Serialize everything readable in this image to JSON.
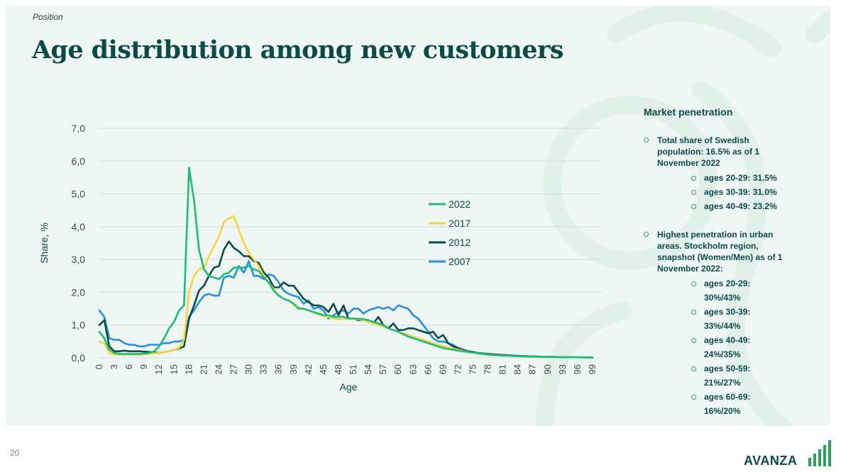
{
  "page": {
    "section": "Position",
    "title": "Age distribution among new customers",
    "page_number": "20"
  },
  "sidebar": {
    "heading": "Market penetration",
    "bullets": [
      {
        "text": "Total share of Swedish population: 16.5% as of 1 November 2022",
        "items": [
          "ages 20-29: 31.5%",
          "ages 30-39: 31.0%",
          "ages 40-49: 23.2%"
        ]
      },
      {
        "text": "Highest penetration in urban areas. Stockholm region, snapshot (Women/Men) as of 1 November 2022:",
        "items": [
          "ages 20-29: 30%/43%",
          "ages 30-39: 33%/44%",
          "ages 40-49: 24%/35%",
          "ages 50-59: 21%/27%",
          "ages 60-69: 16%/20%"
        ]
      }
    ]
  },
  "logo": {
    "text": "AVANZA"
  },
  "colors": {
    "title": "#0c4a48",
    "panel": "#eff7f4",
    "accent": "#2ca15c",
    "s2022": "#1dbb7a",
    "s2017": "#f6d43e",
    "s2012": "#0d4b45",
    "s2007": "#2a8ee0"
  },
  "chart_data": {
    "type": "line",
    "title": "",
    "xlabel": "Age",
    "ylabel": "Share, %",
    "ylim": [
      0,
      7
    ],
    "yticks": [
      "0,0",
      "1,0",
      "2,0",
      "3,0",
      "4,0",
      "5,0",
      "6,0",
      "7,0"
    ],
    "xticks": [
      0,
      3,
      6,
      9,
      12,
      15,
      18,
      21,
      24,
      27,
      30,
      33,
      36,
      39,
      42,
      45,
      48,
      51,
      54,
      57,
      60,
      63,
      66,
      69,
      72,
      75,
      78,
      81,
      84,
      87,
      90,
      93,
      96,
      99
    ],
    "grid": "horizontal",
    "legend_position": "center-right",
    "series": [
      {
        "name": "2022",
        "color_key": "s2022",
        "anchors": [
          [
            0,
            0.8
          ],
          [
            1,
            0.6
          ],
          [
            2,
            0.25
          ],
          [
            3,
            0.15
          ],
          [
            4,
            0.12
          ],
          [
            5,
            0.12
          ],
          [
            6,
            0.12
          ],
          [
            7,
            0.12
          ],
          [
            8,
            0.12
          ],
          [
            9,
            0.13
          ],
          [
            10,
            0.15
          ],
          [
            11,
            0.2
          ],
          [
            12,
            0.35
          ],
          [
            13,
            0.6
          ],
          [
            14,
            0.9
          ],
          [
            15,
            1.1
          ],
          [
            16,
            1.45
          ],
          [
            17,
            1.6
          ],
          [
            18,
            5.8
          ],
          [
            19,
            4.8
          ],
          [
            20,
            3.3
          ],
          [
            21,
            2.7
          ],
          [
            22,
            2.5
          ],
          [
            23,
            2.45
          ],
          [
            24,
            2.4
          ],
          [
            25,
            2.55
          ],
          [
            26,
            2.6
          ],
          [
            27,
            2.75
          ],
          [
            28,
            2.75
          ],
          [
            29,
            2.75
          ],
          [
            30,
            2.8
          ],
          [
            31,
            2.7
          ],
          [
            32,
            2.65
          ],
          [
            33,
            2.45
          ],
          [
            34,
            2.3
          ],
          [
            35,
            2.05
          ],
          [
            36,
            1.9
          ],
          [
            37,
            1.8
          ],
          [
            38,
            1.75
          ],
          [
            39,
            1.65
          ],
          [
            40,
            1.5
          ],
          [
            41,
            1.5
          ],
          [
            42,
            1.45
          ],
          [
            43,
            1.4
          ],
          [
            44,
            1.35
          ],
          [
            45,
            1.3
          ],
          [
            46,
            1.3
          ],
          [
            47,
            1.25
          ],
          [
            48,
            1.25
          ],
          [
            49,
            1.25
          ],
          [
            50,
            1.2
          ],
          [
            51,
            1.2
          ],
          [
            52,
            1.2
          ],
          [
            53,
            1.18
          ],
          [
            54,
            1.15
          ],
          [
            55,
            1.1
          ],
          [
            56,
            1.05
          ],
          [
            57,
            1.0
          ],
          [
            58,
            0.9
          ],
          [
            59,
            0.85
          ],
          [
            60,
            0.8
          ],
          [
            61,
            0.72
          ],
          [
            62,
            0.65
          ],
          [
            63,
            0.6
          ],
          [
            64,
            0.55
          ],
          [
            65,
            0.5
          ],
          [
            66,
            0.45
          ],
          [
            67,
            0.4
          ],
          [
            68,
            0.35
          ],
          [
            69,
            0.3
          ],
          [
            70,
            0.27
          ],
          [
            71,
            0.25
          ],
          [
            72,
            0.22
          ],
          [
            73,
            0.2
          ],
          [
            74,
            0.18
          ],
          [
            75,
            0.16
          ],
          [
            76,
            0.14
          ],
          [
            78,
            0.1
          ],
          [
            80,
            0.08
          ],
          [
            84,
            0.05
          ],
          [
            90,
            0.03
          ],
          [
            99,
            0.01
          ]
        ]
      },
      {
        "name": "2017",
        "color_key": "s2017",
        "anchors": [
          [
            0,
            0.5
          ],
          [
            1,
            0.45
          ],
          [
            2,
            0.15
          ],
          [
            3,
            0.1
          ],
          [
            5,
            0.1
          ],
          [
            8,
            0.1
          ],
          [
            10,
            0.12
          ],
          [
            12,
            0.15
          ],
          [
            14,
            0.2
          ],
          [
            15,
            0.25
          ],
          [
            16,
            0.3
          ],
          [
            17,
            0.55
          ],
          [
            18,
            2.0
          ],
          [
            19,
            2.5
          ],
          [
            20,
            2.7
          ],
          [
            21,
            2.75
          ],
          [
            22,
            3.1
          ],
          [
            23,
            3.4
          ],
          [
            24,
            3.7
          ],
          [
            25,
            4.15
          ],
          [
            26,
            4.25
          ],
          [
            27,
            4.32
          ],
          [
            28,
            3.9
          ],
          [
            29,
            3.5
          ],
          [
            30,
            3.2
          ],
          [
            31,
            3.0
          ],
          [
            32,
            2.8
          ],
          [
            33,
            2.5
          ],
          [
            34,
            2.3
          ],
          [
            35,
            2.1
          ],
          [
            36,
            1.9
          ],
          [
            37,
            1.8
          ],
          [
            38,
            1.75
          ],
          [
            39,
            1.6
          ],
          [
            40,
            1.55
          ],
          [
            41,
            1.5
          ],
          [
            42,
            1.45
          ],
          [
            43,
            1.38
          ],
          [
            44,
            1.32
          ],
          [
            45,
            1.28
          ],
          [
            46,
            1.25
          ],
          [
            47,
            1.2
          ],
          [
            48,
            1.18
          ],
          [
            50,
            1.2
          ],
          [
            52,
            1.18
          ],
          [
            54,
            1.1
          ],
          [
            56,
            1.0
          ],
          [
            58,
            0.9
          ],
          [
            60,
            0.8
          ],
          [
            62,
            0.7
          ],
          [
            64,
            0.6
          ],
          [
            66,
            0.5
          ],
          [
            68,
            0.4
          ],
          [
            70,
            0.32
          ],
          [
            72,
            0.25
          ],
          [
            74,
            0.18
          ],
          [
            76,
            0.14
          ],
          [
            78,
            0.1
          ],
          [
            80,
            0.08
          ],
          [
            84,
            0.05
          ],
          [
            90,
            0.03
          ],
          [
            99,
            0.01
          ]
        ]
      },
      {
        "name": "2012",
        "color_key": "s2012",
        "anchors": [
          [
            0,
            1.0
          ],
          [
            1,
            1.15
          ],
          [
            2,
            0.35
          ],
          [
            3,
            0.2
          ],
          [
            4,
            0.2
          ],
          [
            5,
            0.22
          ],
          [
            6,
            0.2
          ],
          [
            8,
            0.2
          ],
          [
            10,
            0.18
          ],
          [
            12,
            0.15
          ],
          [
            14,
            0.2
          ],
          [
            15,
            0.25
          ],
          [
            16,
            0.28
          ],
          [
            17,
            0.35
          ],
          [
            18,
            1.2
          ],
          [
            19,
            1.6
          ],
          [
            20,
            2.05
          ],
          [
            21,
            2.2
          ],
          [
            22,
            2.5
          ],
          [
            23,
            2.75
          ],
          [
            24,
            2.8
          ],
          [
            25,
            3.3
          ],
          [
            26,
            3.55
          ],
          [
            27,
            3.35
          ],
          [
            28,
            3.25
          ],
          [
            29,
            3.1
          ],
          [
            30,
            3.1
          ],
          [
            31,
            2.95
          ],
          [
            32,
            2.9
          ],
          [
            33,
            2.6
          ],
          [
            34,
            2.45
          ],
          [
            35,
            2.15
          ],
          [
            36,
            2.15
          ],
          [
            37,
            2.3
          ],
          [
            38,
            2.2
          ],
          [
            39,
            2.2
          ],
          [
            40,
            2.0
          ],
          [
            41,
            1.8
          ],
          [
            42,
            1.7
          ],
          [
            43,
            1.6
          ],
          [
            44,
            1.6
          ],
          [
            45,
            1.55
          ],
          [
            46,
            1.4
          ],
          [
            47,
            1.65
          ],
          [
            48,
            1.3
          ],
          [
            49,
            1.6
          ],
          [
            50,
            1.2
          ],
          [
            51,
            1.2
          ],
          [
            52,
            1.15
          ],
          [
            53,
            1.15
          ],
          [
            54,
            1.1
          ],
          [
            55,
            1.05
          ],
          [
            56,
            1.25
          ],
          [
            57,
            1.0
          ],
          [
            58,
            0.9
          ],
          [
            59,
            1.05
          ],
          [
            60,
            0.85
          ],
          [
            61,
            0.85
          ],
          [
            62,
            0.9
          ],
          [
            63,
            0.9
          ],
          [
            64,
            0.85
          ],
          [
            65,
            0.8
          ],
          [
            66,
            0.75
          ],
          [
            67,
            0.8
          ],
          [
            68,
            0.6
          ],
          [
            69,
            0.7
          ],
          [
            70,
            0.45
          ],
          [
            71,
            0.35
          ],
          [
            72,
            0.3
          ],
          [
            73,
            0.25
          ],
          [
            74,
            0.2
          ],
          [
            75,
            0.18
          ],
          [
            76,
            0.15
          ],
          [
            78,
            0.12
          ],
          [
            80,
            0.1
          ],
          [
            84,
            0.06
          ],
          [
            90,
            0.03
          ],
          [
            99,
            0.01
          ]
        ]
      },
      {
        "name": "2007",
        "color_key": "s2007",
        "anchors": [
          [
            0,
            1.45
          ],
          [
            1,
            1.25
          ],
          [
            2,
            0.6
          ],
          [
            3,
            0.55
          ],
          [
            4,
            0.55
          ],
          [
            5,
            0.45
          ],
          [
            6,
            0.4
          ],
          [
            7,
            0.4
          ],
          [
            8,
            0.35
          ],
          [
            9,
            0.35
          ],
          [
            10,
            0.4
          ],
          [
            11,
            0.4
          ],
          [
            12,
            0.4
          ],
          [
            13,
            0.45
          ],
          [
            14,
            0.45
          ],
          [
            15,
            0.5
          ],
          [
            16,
            0.5
          ],
          [
            17,
            0.55
          ],
          [
            18,
            1.25
          ],
          [
            19,
            1.45
          ],
          [
            20,
            1.7
          ],
          [
            21,
            1.9
          ],
          [
            22,
            1.95
          ],
          [
            23,
            1.9
          ],
          [
            24,
            1.9
          ],
          [
            25,
            2.45
          ],
          [
            26,
            2.5
          ],
          [
            27,
            2.45
          ],
          [
            28,
            2.8
          ],
          [
            29,
            2.6
          ],
          [
            30,
            2.95
          ],
          [
            31,
            2.5
          ],
          [
            32,
            2.5
          ],
          [
            33,
            2.4
          ],
          [
            34,
            2.55
          ],
          [
            35,
            2.5
          ],
          [
            36,
            2.3
          ],
          [
            37,
            2.05
          ],
          [
            38,
            1.95
          ],
          [
            39,
            1.9
          ],
          [
            40,
            1.85
          ],
          [
            41,
            1.65
          ],
          [
            42,
            1.75
          ],
          [
            43,
            1.5
          ],
          [
            44,
            1.55
          ],
          [
            45,
            1.45
          ],
          [
            46,
            1.2
          ],
          [
            47,
            1.3
          ],
          [
            48,
            1.4
          ],
          [
            49,
            1.45
          ],
          [
            50,
            1.35
          ],
          [
            51,
            1.5
          ],
          [
            52,
            1.5
          ],
          [
            53,
            1.35
          ],
          [
            54,
            1.45
          ],
          [
            55,
            1.5
          ],
          [
            56,
            1.55
          ],
          [
            57,
            1.5
          ],
          [
            58,
            1.55
          ],
          [
            59,
            1.45
          ],
          [
            60,
            1.6
          ],
          [
            61,
            1.55
          ],
          [
            62,
            1.5
          ],
          [
            63,
            1.3
          ],
          [
            64,
            1.2
          ],
          [
            65,
            1.0
          ],
          [
            66,
            0.8
          ],
          [
            67,
            0.6
          ],
          [
            68,
            0.5
          ],
          [
            69,
            0.5
          ],
          [
            70,
            0.45
          ],
          [
            71,
            0.4
          ],
          [
            72,
            0.3
          ],
          [
            73,
            0.25
          ],
          [
            74,
            0.2
          ],
          [
            75,
            0.18
          ],
          [
            76,
            0.15
          ],
          [
            78,
            0.12
          ],
          [
            80,
            0.1
          ],
          [
            84,
            0.06
          ],
          [
            90,
            0.03
          ],
          [
            99,
            0.01
          ]
        ]
      }
    ]
  }
}
